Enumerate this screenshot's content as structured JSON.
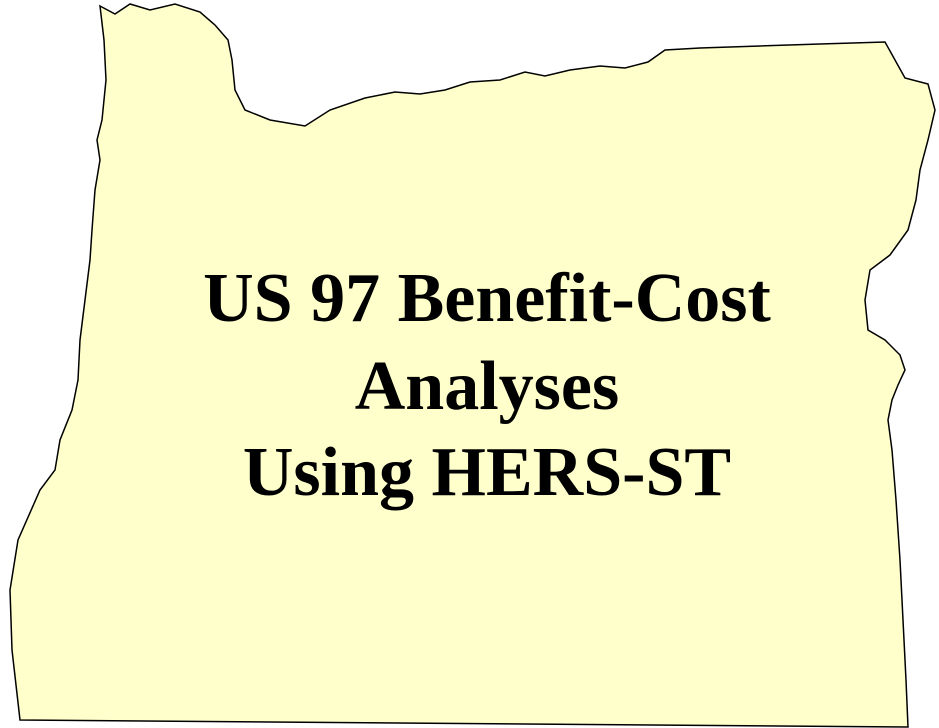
{
  "title": {
    "lines": [
      "US 97 Benefit-Cost",
      "Analyses",
      "Using HERS-ST"
    ]
  }
}
